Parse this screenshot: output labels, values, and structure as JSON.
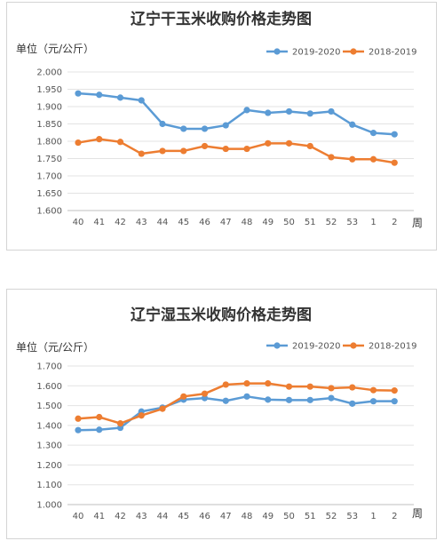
{
  "chart_data": [
    {
      "type": "line",
      "title": "辽宁干玉米收购价格走势图",
      "ylabel": "单位（元/公斤）",
      "xlabel": "周",
      "categories": [
        "40",
        "41",
        "42",
        "43",
        "44",
        "45",
        "46",
        "47",
        "48",
        "49",
        "50",
        "51",
        "52",
        "53",
        "1",
        "2"
      ],
      "ylim": [
        1.6,
        2.0
      ],
      "ystep": 0.05,
      "yticks": [
        "1.600",
        "1.650",
        "1.700",
        "1.750",
        "1.800",
        "1.850",
        "1.900",
        "1.950",
        "2.000"
      ],
      "grid": true,
      "legend": "top-right",
      "series": [
        {
          "name": "2019-2020",
          "color": "#5b9bd5",
          "values": [
            1.938,
            1.934,
            1.926,
            1.918,
            1.85,
            1.836,
            1.836,
            1.846,
            1.89,
            1.882,
            1.886,
            1.88,
            1.886,
            1.848,
            1.824,
            1.82
          ]
        },
        {
          "name": "2018-2019",
          "color": "#ed7d31",
          "values": [
            1.796,
            1.806,
            1.798,
            1.764,
            1.772,
            1.772,
            1.786,
            1.778,
            1.778,
            1.794,
            1.794,
            1.786,
            1.754,
            1.748,
            1.748,
            1.738
          ]
        }
      ]
    },
    {
      "type": "line",
      "title": "辽宁湿玉米收购价格走势图",
      "ylabel": "单位（元/公斤）",
      "xlabel": "周",
      "categories": [
        "40",
        "41",
        "42",
        "43",
        "44",
        "45",
        "46",
        "47",
        "48",
        "49",
        "50",
        "51",
        "52",
        "53",
        "1",
        "2"
      ],
      "ylim": [
        1.0,
        1.7
      ],
      "ystep": 0.1,
      "yticks": [
        "1.000",
        "1.100",
        "1.200",
        "1.300",
        "1.400",
        "1.500",
        "1.600",
        "1.700"
      ],
      "grid": true,
      "legend": "top-right",
      "series": [
        {
          "name": "2019-2020",
          "color": "#5b9bd5",
          "values": [
            1.376,
            1.378,
            1.388,
            1.47,
            1.49,
            1.53,
            1.538,
            1.524,
            1.546,
            1.53,
            1.528,
            1.528,
            1.538,
            1.51,
            1.522,
            1.522
          ]
        },
        {
          "name": "2018-2019",
          "color": "#ed7d31",
          "values": [
            1.434,
            1.442,
            1.41,
            1.45,
            1.484,
            1.546,
            1.56,
            1.606,
            1.612,
            1.612,
            1.596,
            1.596,
            1.588,
            1.592,
            1.578,
            1.576
          ]
        }
      ]
    }
  ]
}
